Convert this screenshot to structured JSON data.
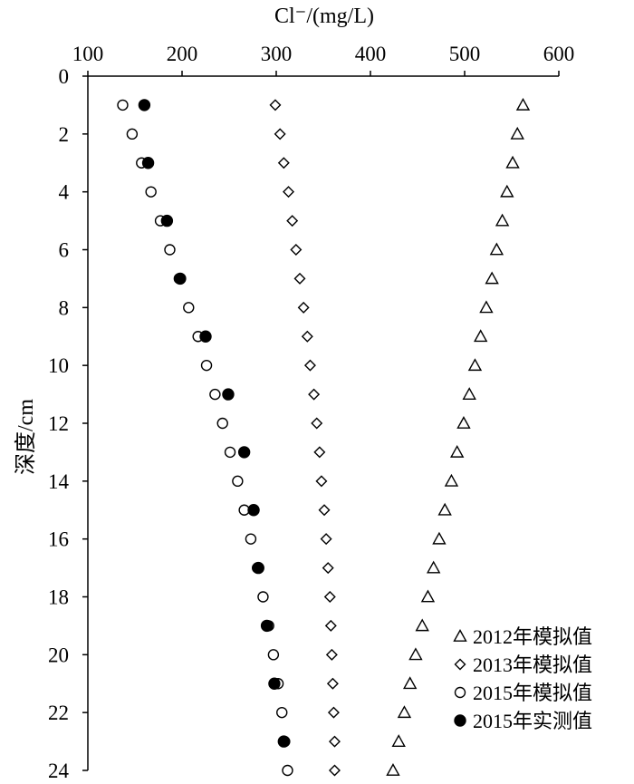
{
  "chart_data": {
    "type": "scatter",
    "title": "",
    "xlabel": "Cl⁻/(mg/L)",
    "ylabel": "深度/cm",
    "xlim": [
      100,
      600
    ],
    "ylim": [
      0,
      24
    ],
    "y_inverted": true,
    "x_axis_position": "top",
    "x_ticks": [
      100,
      200,
      300,
      400,
      500,
      600
    ],
    "y_ticks": [
      0,
      2,
      4,
      6,
      8,
      10,
      12,
      14,
      16,
      18,
      20,
      22,
      24
    ],
    "grid": false,
    "legend_position": "bottom-right",
    "series": [
      {
        "name": "2012年模拟值",
        "marker": "triangle-open",
        "points": [
          [
            562,
            1
          ],
          [
            556,
            2
          ],
          [
            551,
            3
          ],
          [
            545,
            4
          ],
          [
            540,
            5
          ],
          [
            534,
            6
          ],
          [
            529,
            7
          ],
          [
            523,
            8
          ],
          [
            517,
            9
          ],
          [
            511,
            10
          ],
          [
            505,
            11
          ],
          [
            499,
            12
          ],
          [
            492,
            13
          ],
          [
            486,
            14
          ],
          [
            479,
            15
          ],
          [
            473,
            16
          ],
          [
            467,
            17
          ],
          [
            461,
            18
          ],
          [
            455,
            19
          ],
          [
            448,
            20
          ],
          [
            442,
            21
          ],
          [
            436,
            22
          ],
          [
            430,
            23
          ],
          [
            424,
            24
          ]
        ]
      },
      {
        "name": "2013年模拟值",
        "marker": "diamond-open",
        "points": [
          [
            299,
            1
          ],
          [
            304,
            2
          ],
          [
            308,
            3
          ],
          [
            313,
            4
          ],
          [
            317,
            5
          ],
          [
            321,
            6
          ],
          [
            325,
            7
          ],
          [
            329,
            8
          ],
          [
            333,
            9
          ],
          [
            336,
            10
          ],
          [
            340,
            11
          ],
          [
            343,
            12
          ],
          [
            346,
            13
          ],
          [
            348,
            14
          ],
          [
            351,
            15
          ],
          [
            353,
            16
          ],
          [
            355,
            17
          ],
          [
            357,
            18
          ],
          [
            358,
            19
          ],
          [
            359,
            20
          ],
          [
            360,
            21
          ],
          [
            361,
            22
          ],
          [
            362,
            23
          ],
          [
            362,
            24
          ]
        ]
      },
      {
        "name": "2015年模拟值",
        "marker": "circle-open",
        "points": [
          [
            137,
            1
          ],
          [
            147,
            2
          ],
          [
            157,
            3
          ],
          [
            167,
            4
          ],
          [
            177,
            5
          ],
          [
            187,
            6
          ],
          [
            197,
            7
          ],
          [
            207,
            8
          ],
          [
            217,
            9
          ],
          [
            226,
            10
          ],
          [
            235,
            11
          ],
          [
            243,
            12
          ],
          [
            251,
            13
          ],
          [
            259,
            14
          ],
          [
            266,
            15
          ],
          [
            273,
            16
          ],
          [
            280,
            17
          ],
          [
            286,
            18
          ],
          [
            292,
            19
          ],
          [
            297,
            20
          ],
          [
            302,
            21
          ],
          [
            306,
            22
          ],
          [
            309,
            23
          ],
          [
            312,
            24
          ]
        ]
      },
      {
        "name": "2015年实测值",
        "marker": "circle-filled",
        "points": [
          [
            160,
            1
          ],
          [
            164,
            3
          ],
          [
            184,
            5
          ],
          [
            198,
            7
          ],
          [
            225,
            9
          ],
          [
            249,
            11
          ],
          [
            266,
            13
          ],
          [
            276,
            15
          ],
          [
            281,
            17
          ],
          [
            290,
            19
          ],
          [
            298,
            21
          ],
          [
            308,
            23
          ]
        ]
      }
    ]
  }
}
